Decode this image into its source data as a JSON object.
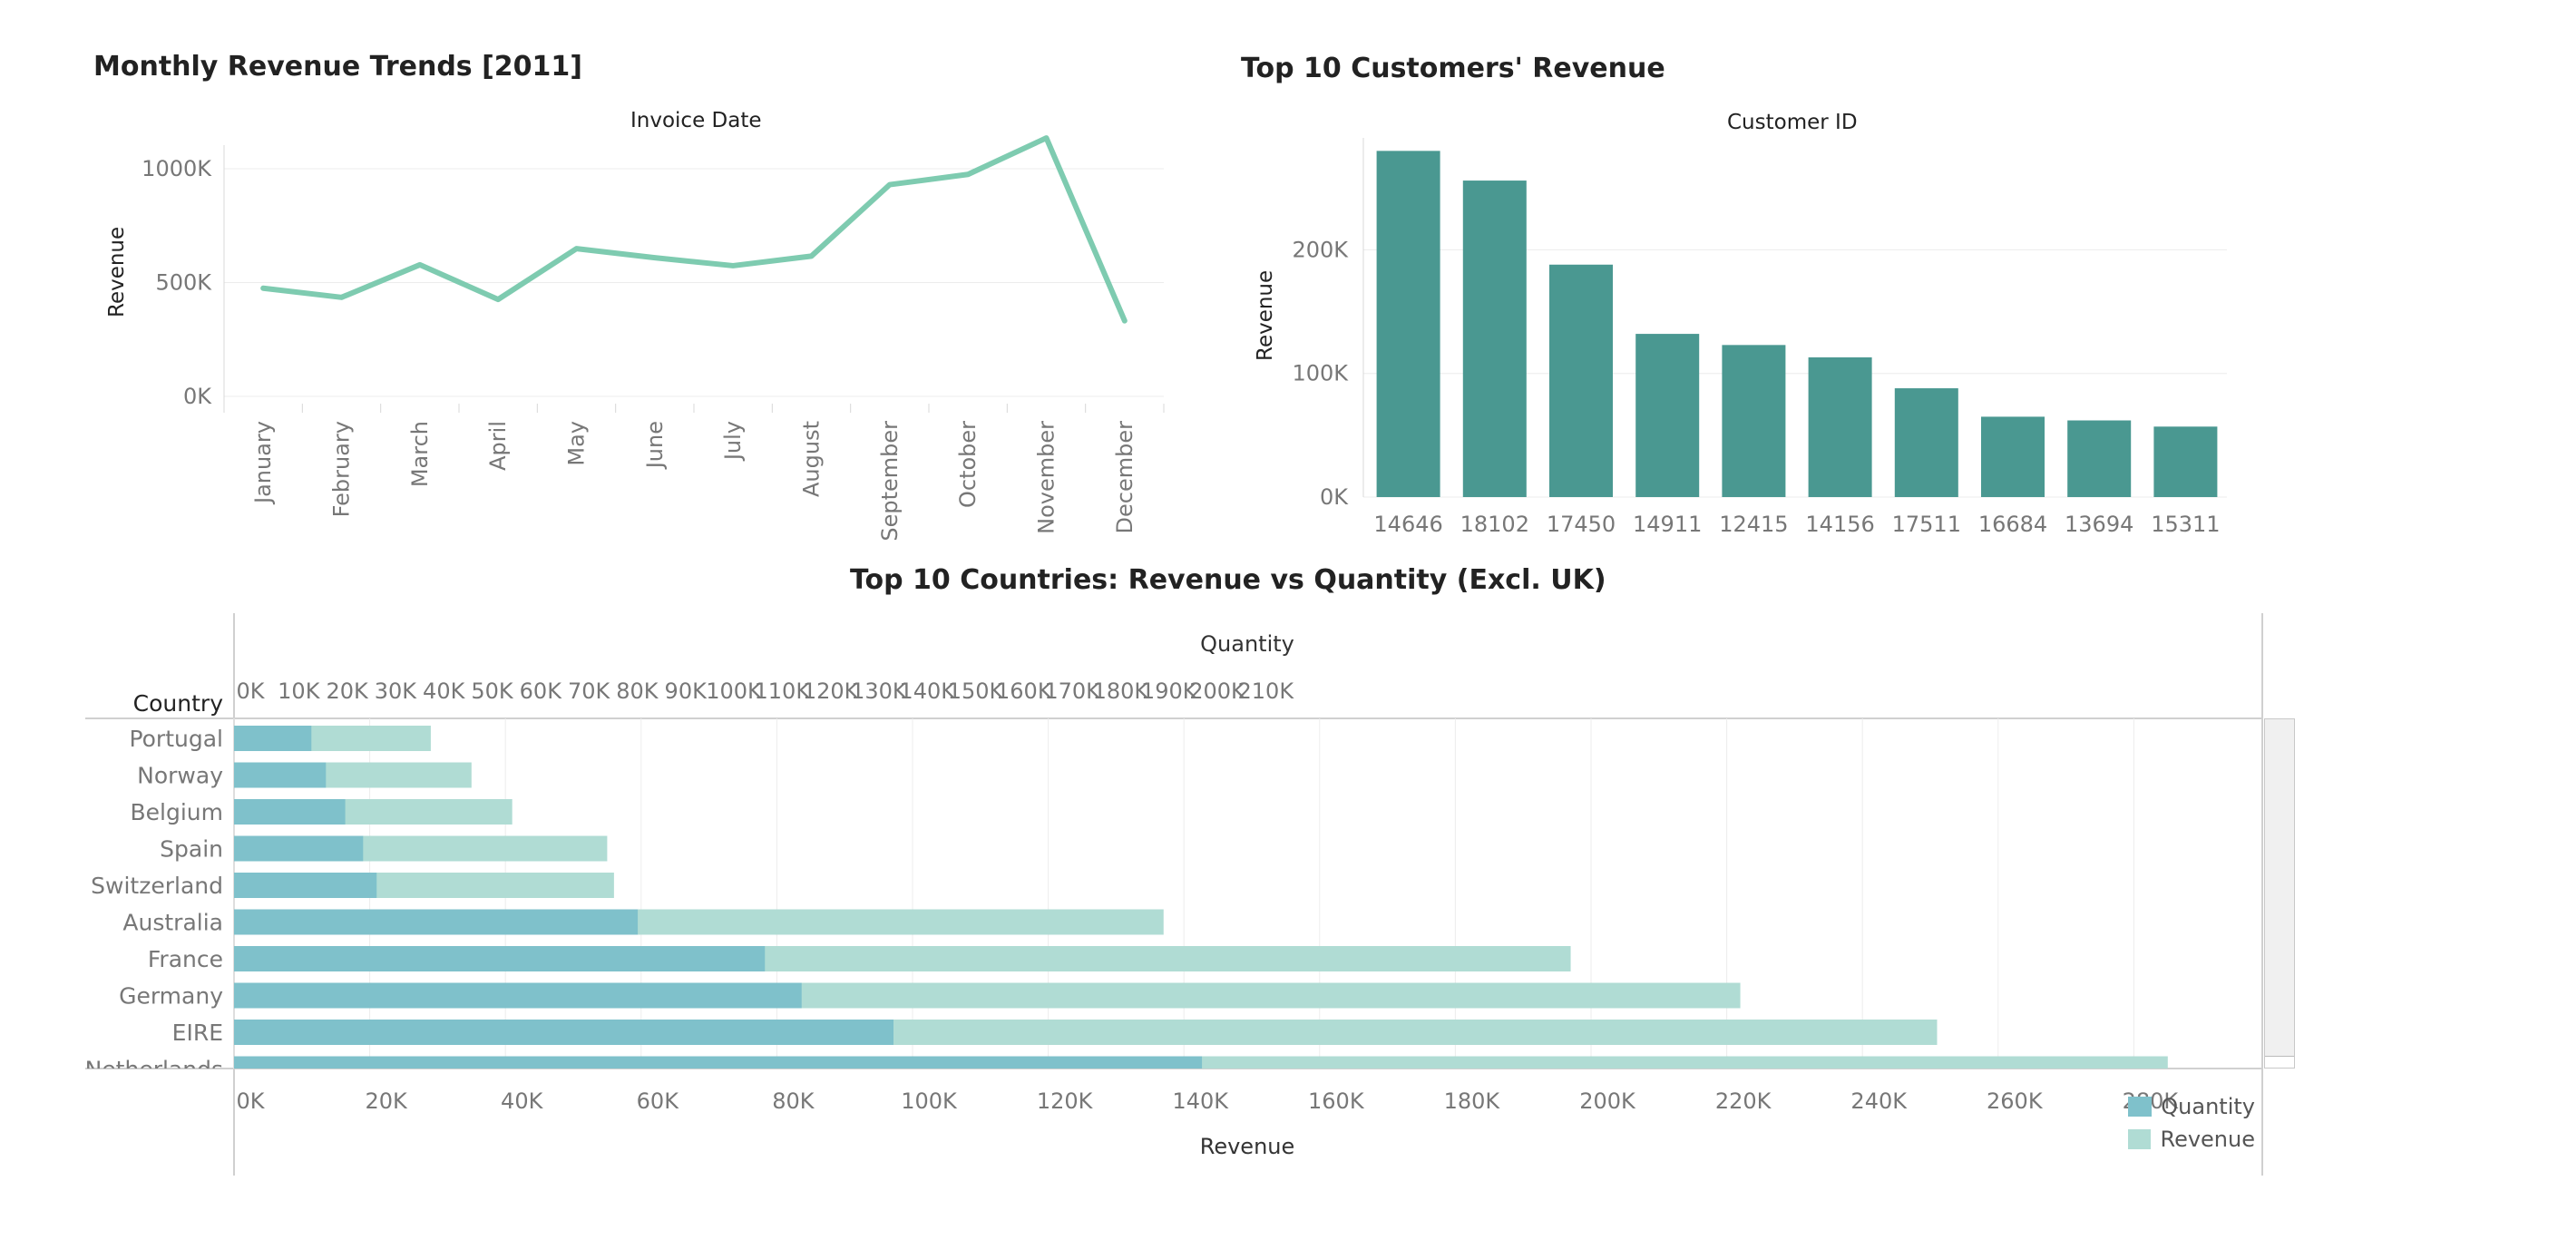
{
  "colors": {
    "line": "#7ecbb0",
    "bar": "#4a9891",
    "quantity": "#7fc1cb",
    "revenue": "#b0dcd4",
    "grid": "#ececec",
    "axis": "#d8d8d8"
  },
  "chart_data": [
    {
      "type": "line",
      "title": "Monthly Revenue Trends [2011]",
      "xlabel": "Invoice Date",
      "ylabel": "Revenue",
      "categories": [
        "January",
        "February",
        "March",
        "April",
        "May",
        "June",
        "July",
        "August",
        "September",
        "October",
        "November",
        "December"
      ],
      "values": [
        475000,
        435000,
        578000,
        426000,
        649000,
        609000,
        574000,
        616000,
        930000,
        975000,
        1135000,
        332000
      ],
      "y_ticks": [
        "0K",
        "500K",
        "1000K"
      ],
      "ylim": [
        0,
        1200000
      ],
      "grid": true
    },
    {
      "type": "bar",
      "title": "Top 10 Customers' Revenue",
      "xlabel": "Customer ID",
      "ylabel": "Revenue",
      "categories": [
        "14646",
        "18102",
        "17450",
        "14911",
        "12415",
        "14156",
        "17511",
        "16684",
        "13694",
        "15311"
      ],
      "values": [
        280000,
        256000,
        188000,
        132000,
        123000,
        113000,
        88000,
        65000,
        62000,
        57000
      ],
      "y_ticks": [
        "0K",
        "100K",
        "200K"
      ],
      "ylim": [
        0,
        300000
      ],
      "grid": true
    },
    {
      "type": "bar",
      "orientation": "horizontal",
      "title": "Top 10 Countries: Revenue vs Quantity (Excl. UK)",
      "row_header": "Country",
      "top_axis_label": "Quantity",
      "bottom_axis_label": "Revenue",
      "categories": [
        "Portugal",
        "Norway",
        "Belgium",
        "Spain",
        "Switzerland",
        "Australia",
        "France",
        "Germany",
        "EIRE",
        "Netherlands"
      ],
      "series": [
        {
          "name": "Quantity",
          "values": [
            16000,
            19000,
            23000,
            26700,
            29500,
            83500,
            109800,
            117400,
            136400,
            200200
          ]
        },
        {
          "name": "Revenue",
          "values": [
            29000,
            35000,
            41000,
            55000,
            56000,
            137000,
            197000,
            222000,
            251000,
            285000
          ]
        }
      ],
      "quantity_ticks": [
        "0K",
        "10K",
        "20K",
        "30K",
        "40K",
        "50K",
        "60K",
        "70K",
        "80K",
        "90K",
        "100K",
        "110K",
        "120K",
        "130K",
        "140K",
        "150K",
        "160K",
        "170K",
        "180K",
        "190K",
        "200K",
        "210K"
      ],
      "revenue_ticks": [
        "0K",
        "20K",
        "40K",
        "60K",
        "80K",
        "100K",
        "120K",
        "140K",
        "160K",
        "180K",
        "200K",
        "220K",
        "240K",
        "260K",
        "280K"
      ],
      "legend": [
        "Quantity",
        "Revenue"
      ],
      "legend_position": "bottom-right"
    }
  ]
}
